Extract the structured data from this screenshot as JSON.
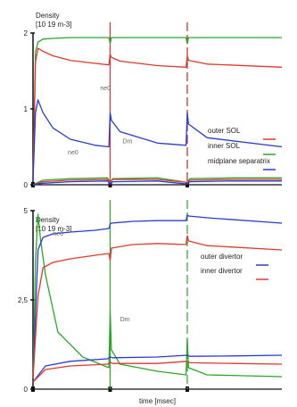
{
  "chart_data": [
    {
      "type": "line",
      "panel": "top",
      "ylabel_lines": [
        "Density",
        "[10 19 m-3]"
      ],
      "ylim": [
        0,
        2
      ],
      "yticks": [
        {
          "v": 0,
          "label": "0"
        },
        {
          "v": 1,
          "label": "1"
        },
        {
          "v": 2,
          "label": "2"
        }
      ],
      "xlim": [
        0,
        100
      ],
      "xticks": [
        0,
        31,
        62
      ],
      "events": [
        {
          "x": 31,
          "style": "solid",
          "color": "#d83030"
        },
        {
          "x": 62,
          "style": "dashed",
          "color": "#c02828"
        }
      ],
      "legend": [
        {
          "text": "outer SOL",
          "color": "#e03a2a"
        },
        {
          "text": "inner SOL",
          "color": "#2aa82a"
        },
        {
          "text": "midplane separatrix",
          "color": "#2a3ad8"
        }
      ],
      "annotations": [
        {
          "text": "ne0",
          "x": 27,
          "y": 1.25
        },
        {
          "text": "Dm",
          "x": 36,
          "y": 0.55
        },
        {
          "text": "ne0",
          "x": 14,
          "y": 0.4
        }
      ],
      "series": [
        {
          "color": "#2aa82a",
          "x": [
            0,
            1,
            2,
            4,
            8,
            15,
            25,
            30.5,
            31,
            31.5,
            35,
            50,
            61.5,
            62,
            62.5,
            70,
            100
          ],
          "y": [
            0.05,
            1.75,
            1.88,
            1.92,
            1.93,
            1.94,
            1.94,
            1.94,
            1.86,
            1.94,
            1.94,
            1.94,
            1.94,
            1.86,
            1.94,
            1.94,
            1.94
          ]
        },
        {
          "color": "#e03a2a",
          "x": [
            0,
            1,
            2,
            4,
            8,
            15,
            25,
            30.5,
            31,
            31.5,
            35,
            50,
            61.5,
            62,
            62.5,
            70,
            100
          ],
          "y": [
            0.05,
            1.62,
            1.8,
            1.76,
            1.7,
            1.64,
            1.6,
            1.58,
            1.72,
            1.68,
            1.63,
            1.57,
            1.55,
            1.7,
            1.64,
            1.59,
            1.55
          ]
        },
        {
          "color": "#2a3ad8",
          "x": [
            0,
            1,
            2,
            4,
            8,
            15,
            25,
            30.5,
            31,
            31.5,
            35,
            50,
            61.5,
            62,
            62.5,
            70,
            100
          ],
          "y": [
            0.05,
            0.95,
            1.12,
            0.95,
            0.75,
            0.6,
            0.52,
            0.5,
            0.95,
            0.85,
            0.7,
            0.55,
            0.52,
            0.95,
            0.8,
            0.62,
            0.5
          ]
        },
        {
          "color": "#2aa82a",
          "x": [
            0,
            4,
            15,
            30,
            31,
            32,
            50,
            62,
            63,
            80,
            100
          ],
          "y": [
            0,
            0.06,
            0.08,
            0.09,
            0.03,
            0.08,
            0.09,
            0.03,
            0.08,
            0.09,
            0.09
          ]
        },
        {
          "color": "#e03a2a",
          "x": [
            0,
            4,
            15,
            30,
            31,
            32,
            50,
            62,
            63,
            80,
            100
          ],
          "y": [
            0,
            0.04,
            0.06,
            0.07,
            0.03,
            0.07,
            0.07,
            0.03,
            0.06,
            0.07,
            0.07
          ]
        },
        {
          "color": "#2a3ad8",
          "x": [
            0,
            4,
            15,
            30,
            31,
            32,
            50,
            62,
            63,
            80,
            100
          ],
          "y": [
            0,
            0.02,
            0.04,
            0.05,
            0.01,
            0.04,
            0.05,
            0.01,
            0.04,
            0.05,
            0.05
          ]
        }
      ]
    },
    {
      "type": "line",
      "panel": "bottom",
      "ylabel_lines": [
        "Density",
        "[10 19 m-3]"
      ],
      "ylim": [
        0,
        5
      ],
      "yticks": [
        {
          "v": 0,
          "label": "0"
        },
        {
          "v": 2.5,
          "label": "2,5"
        },
        {
          "v": 5,
          "label": "5"
        }
      ],
      "xlim": [
        0,
        100
      ],
      "xticks": [
        0,
        31,
        62
      ],
      "xlabel": "time [msec]",
      "events": [
        {
          "x": 31,
          "style": "solid",
          "color": "#2aa82a"
        },
        {
          "x": 62,
          "style": "dashed",
          "color": "#2aa82a"
        }
      ],
      "legend": [
        {
          "text": "outer divertor",
          "color": "#2a3ad8"
        },
        {
          "text": "inner divertor",
          "color": "#e03a2a"
        }
      ],
      "annotations": [
        {
          "text": "ne0",
          "x": 8,
          "y": 4.3
        },
        {
          "text": "Dm",
          "x": 35,
          "y": 1.9
        }
      ],
      "series": [
        {
          "color": "#2aa82a",
          "x": [
            0,
            1,
            2,
            3,
            5,
            10,
            20,
            30.5,
            31,
            31.5,
            35,
            50,
            61.5,
            62,
            62.5,
            70,
            100
          ],
          "y": [
            0.3,
            3.6,
            4.9,
            4.2,
            3.2,
            1.6,
            0.9,
            0.6,
            2.2,
            1.1,
            0.7,
            0.5,
            0.4,
            1.4,
            0.6,
            0.4,
            0.35
          ]
        },
        {
          "color": "#2a3ad8",
          "x": [
            0,
            2,
            4,
            8,
            15,
            25,
            30.5,
            31,
            31.5,
            40,
            50,
            61.5,
            62,
            62.5,
            70,
            100
          ],
          "y": [
            0.3,
            3.9,
            4.25,
            4.35,
            4.4,
            4.45,
            4.5,
            4.62,
            4.65,
            4.7,
            4.72,
            4.72,
            4.88,
            4.85,
            4.8,
            4.65
          ]
        },
        {
          "color": "#e03a2a",
          "x": [
            0,
            2,
            4,
            8,
            15,
            25,
            30.5,
            31,
            31.5,
            40,
            50,
            61.5,
            62,
            62.5,
            70,
            100
          ],
          "y": [
            0.3,
            2.6,
            3.4,
            3.55,
            3.65,
            3.75,
            3.8,
            3.6,
            3.95,
            4.05,
            4.08,
            4.05,
            4.3,
            4.15,
            4.02,
            3.9
          ]
        },
        {
          "color": "#2a3ad8",
          "x": [
            0,
            5,
            15,
            30,
            31,
            32,
            50,
            62,
            63,
            80,
            100
          ],
          "y": [
            0.2,
            0.65,
            0.78,
            0.85,
            0.9,
            0.88,
            0.9,
            0.95,
            0.92,
            0.93,
            0.95
          ]
        },
        {
          "color": "#e03a2a",
          "x": [
            0,
            5,
            15,
            30,
            31,
            32,
            50,
            62,
            63,
            80,
            100
          ],
          "y": [
            0.2,
            0.55,
            0.65,
            0.7,
            0.75,
            0.72,
            0.72,
            0.78,
            0.74,
            0.72,
            0.7
          ]
        }
      ]
    }
  ]
}
